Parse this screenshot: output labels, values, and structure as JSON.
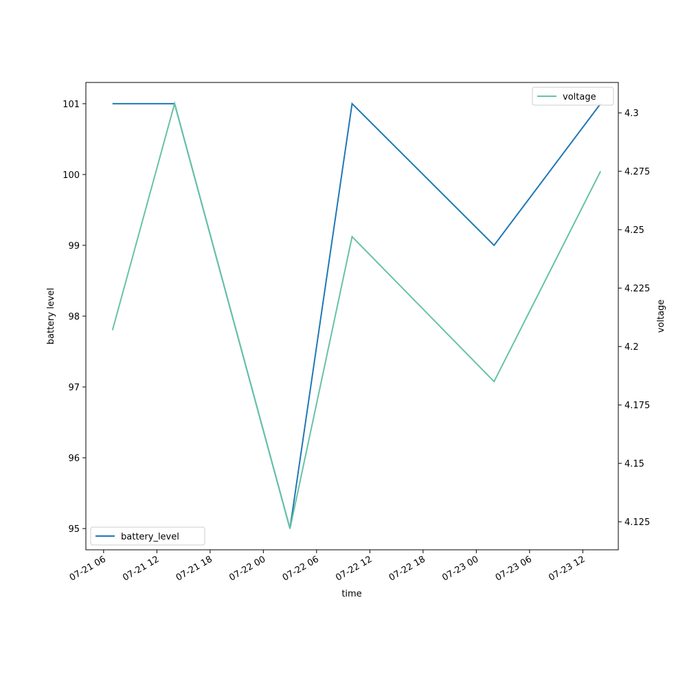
{
  "chart_data": {
    "type": "line",
    "x_label": "time",
    "y_label": "battery level",
    "y2_label": "voltage",
    "x": [
      "07-21 07",
      "07-21 14",
      "07-22 03",
      "07-22 10",
      "07-23 02",
      "07-23 14"
    ],
    "series": [
      {
        "name": "battery_level",
        "color": "#1f77b4",
        "values": [
          101,
          101,
          95,
          101,
          99,
          101
        ],
        "legend": "lower left"
      },
      {
        "name": "voltage",
        "color": "#66c2a5",
        "axis": "y2",
        "values": [
          4.207,
          4.304,
          4.122,
          4.247,
          4.185,
          4.275
        ],
        "legend": "upper right"
      }
    ],
    "xlim": [
      "07-21 04",
      "07-23 16"
    ],
    "xticks": [
      "07-21 06",
      "07-21 12",
      "07-21 18",
      "07-22 00",
      "07-22 06",
      "07-22 12",
      "07-22 18",
      "07-23 00",
      "07-23 06",
      "07-23 12"
    ],
    "ylim": [
      94.7,
      101.3
    ],
    "yticks": [
      95,
      96,
      97,
      98,
      99,
      100,
      101
    ],
    "y2lim": [
      4.113,
      4.313
    ],
    "y2ticks": [
      4.125,
      4.15,
      4.175,
      4.2,
      4.225,
      4.25,
      4.275,
      4.3
    ]
  }
}
